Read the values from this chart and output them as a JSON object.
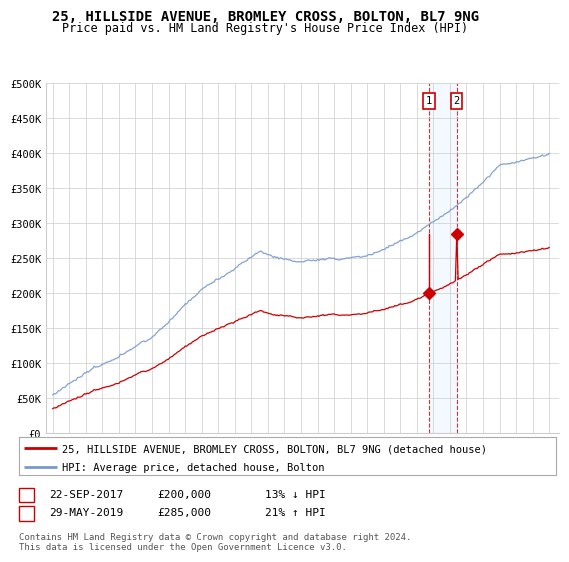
{
  "title": "25, HILLSIDE AVENUE, BROMLEY CROSS, BOLTON, BL7 9NG",
  "subtitle": "Price paid vs. HM Land Registry's House Price Index (HPI)",
  "legend_line1": "25, HILLSIDE AVENUE, BROMLEY CROSS, BOLTON, BL7 9NG (detached house)",
  "legend_line2": "HPI: Average price, detached house, Bolton",
  "copyright": "Contains HM Land Registry data © Crown copyright and database right 2024.\nThis data is licensed under the Open Government Licence v3.0.",
  "ylim": [
    0,
    500000
  ],
  "yticks": [
    0,
    50000,
    100000,
    150000,
    200000,
    250000,
    300000,
    350000,
    400000,
    450000,
    500000
  ],
  "ytick_labels": [
    "£0",
    "£50K",
    "£100K",
    "£150K",
    "£200K",
    "£250K",
    "£300K",
    "£350K",
    "£400K",
    "£450K",
    "£500K"
  ],
  "hpi_color": "#7799cc",
  "price_color": "#cc0000",
  "marker1_x": 2017.73,
  "marker1_y": 200000,
  "marker2_x": 2019.41,
  "marker2_y": 285000,
  "vline1_x": 2017.73,
  "vline2_x": 2019.41,
  "highlight_color": "#ddeeff",
  "grid_color": "#cccccc",
  "background_color": "#ffffff",
  "xtick_start": 1995,
  "xtick_end": 2025,
  "title_fontsize": 10,
  "subtitle_fontsize": 8.5,
  "axis_fontsize": 7.5,
  "legend_fontsize": 8
}
